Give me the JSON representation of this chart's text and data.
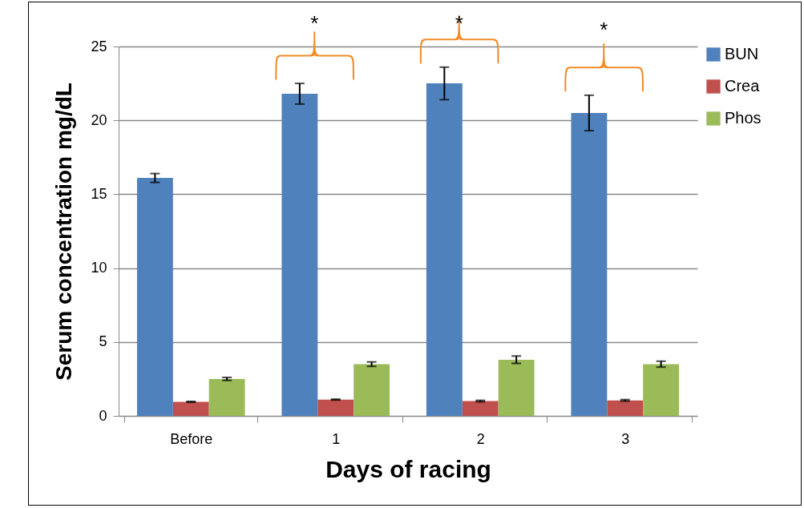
{
  "chart_data": {
    "type": "bar",
    "xlabel": "Days of racing",
    "ylabel": "Serum concentration mg/dL",
    "categories": [
      "Before",
      "1",
      "2",
      "3"
    ],
    "series": [
      {
        "name": "BUN",
        "color": "#4f81bd",
        "values": [
          16.1,
          21.8,
          22.5,
          20.5
        ],
        "errors": [
          0.3,
          0.7,
          1.1,
          1.2
        ]
      },
      {
        "name": "Crea",
        "color": "#c0504d",
        "values": [
          0.95,
          1.1,
          1.0,
          1.05
        ],
        "errors": [
          0.03,
          0.03,
          0.05,
          0.05
        ]
      },
      {
        "name": "Phos",
        "color": "#9bbb59",
        "values": [
          2.5,
          3.5,
          3.8,
          3.5
        ],
        "errors": [
          0.1,
          0.15,
          0.25,
          0.2
        ]
      }
    ],
    "ylim": [
      0,
      25
    ],
    "yticks": [
      0,
      5,
      10,
      15,
      20,
      25
    ],
    "grid": "y",
    "legend": "right",
    "annotations": [
      "*",
      "*",
      "*"
    ]
  }
}
